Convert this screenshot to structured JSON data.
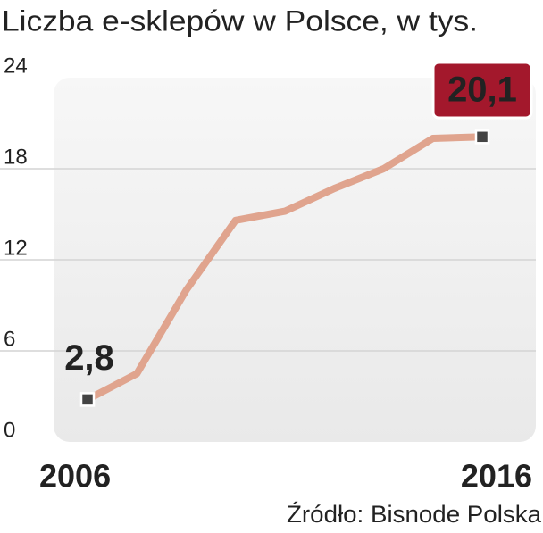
{
  "chart_data": {
    "type": "line",
    "title": "Liczba e-sklepów w Polsce, w tys.",
    "source": "Źródło: Bisnode Polska",
    "categories": [
      "2006",
      null,
      null,
      null,
      null,
      null,
      null,
      null,
      "2016"
    ],
    "series": [
      {
        "name": null,
        "color": "#e0a48e",
        "values": [
          2.8,
          4.5,
          10,
          14.6,
          15.2,
          16.7,
          18,
          20,
          20.1
        ],
        "value_labels": [
          "2,8",
          null,
          null,
          null,
          null,
          null,
          null,
          null,
          "20,1"
        ]
      }
    ],
    "ylim": [
      0,
      24
    ],
    "yticks": [
      0,
      6,
      12,
      18,
      24
    ],
    "grid": true
  }
}
